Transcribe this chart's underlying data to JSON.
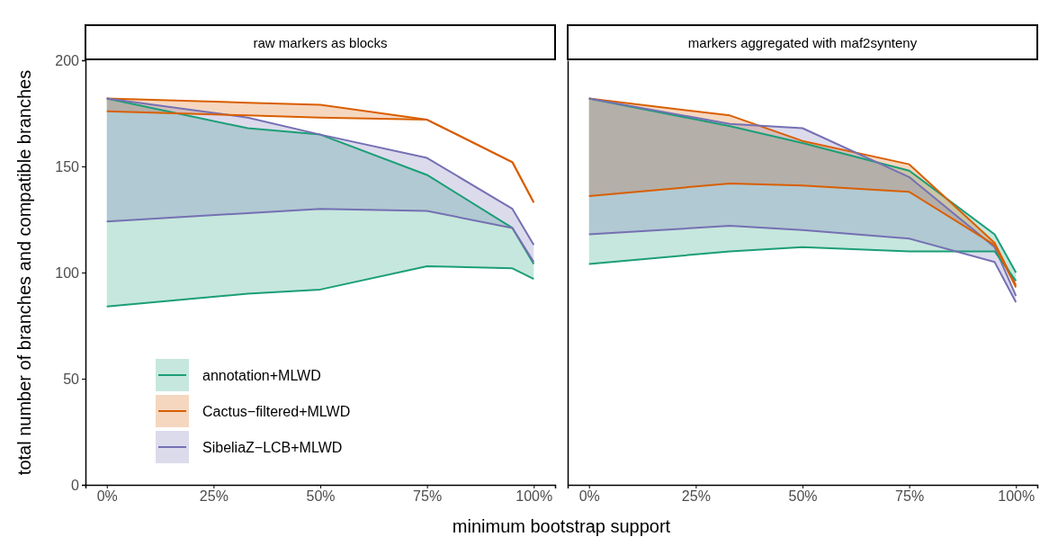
{
  "chart_data": [
    {
      "type": "line",
      "title": "raw markers as blocks",
      "xlabel": "minimum bootstrap support",
      "ylabel": "total number of branches and compatible branches",
      "x": [
        0,
        33,
        50,
        75,
        95,
        100
      ],
      "xlim": [
        -5,
        105
      ],
      "xticks": [
        {
          "value": 0,
          "label": "0%"
        },
        {
          "value": 25,
          "label": "25%"
        },
        {
          "value": 50,
          "label": "50%"
        },
        {
          "value": 75,
          "label": "75%"
        },
        {
          "value": 100,
          "label": "100%"
        }
      ],
      "ylim": [
        0,
        200
      ],
      "yticks": [
        0,
        50,
        100,
        150,
        200
      ],
      "grid": false,
      "legend": "bottom left",
      "series": [
        {
          "name": "annotation+MLWD",
          "color": "#1b9e77",
          "values": [
            182,
            168,
            165,
            146,
            121,
            104
          ],
          "lower": [
            84,
            90,
            92,
            103,
            102,
            97
          ],
          "upper": [
            182,
            168,
            165,
            146,
            121,
            104
          ]
        },
        {
          "name": "Cactus−filtered+MLWD",
          "color": "#d95f02",
          "values": [
            182,
            180,
            179,
            172,
            152,
            133
          ],
          "lower": [
            176,
            174,
            173,
            172,
            152,
            133
          ],
          "upper": [
            182,
            180,
            179,
            172,
            152,
            133
          ]
        },
        {
          "name": "SibeliaZ−LCB+MLWD",
          "color": "#7570b3",
          "values": [
            182,
            173,
            165,
            154,
            130,
            113
          ],
          "lower": [
            124,
            128,
            130,
            129,
            121,
            105
          ],
          "upper": [
            182,
            173,
            165,
            154,
            130,
            113
          ]
        },
        {
          "color": "#1b9e77",
          "values": [
            84,
            90,
            92,
            103,
            102,
            97
          ]
        },
        {
          "color": "#d95f02",
          "values": [
            176,
            174,
            173,
            172,
            152,
            133
          ]
        },
        {
          "color": "#7570b3",
          "values": [
            124,
            128,
            130,
            129,
            121,
            105
          ]
        }
      ]
    },
    {
      "type": "line",
      "title": "markers aggregated with maf2synteny",
      "x": [
        0,
        33,
        50,
        75,
        95,
        100
      ],
      "xlim": [
        -5,
        105
      ],
      "xticks": [
        {
          "value": 0,
          "label": "0%"
        },
        {
          "value": 25,
          "label": "25%"
        },
        {
          "value": 50,
          "label": "50%"
        },
        {
          "value": 75,
          "label": "75%"
        },
        {
          "value": 100,
          "label": "100%"
        }
      ],
      "ylim": [
        0,
        200
      ],
      "yticks": [
        0,
        50,
        100,
        150,
        200
      ],
      "tick_labels": "x",
      "grid": false,
      "series": [
        {
          "color": "#1b9e77",
          "values": [
            182,
            169,
            161,
            148,
            118,
            100
          ],
          "lower": [
            104,
            110,
            112,
            110,
            110,
            96
          ],
          "upper": [
            182,
            169,
            161,
            148,
            118,
            100
          ]
        },
        {
          "color": "#d95f02",
          "values": [
            182,
            174,
            162,
            151,
            114,
            94
          ],
          "lower": [
            136,
            142,
            141,
            138,
            113,
            93
          ],
          "upper": [
            182,
            174,
            162,
            151,
            114,
            94
          ]
        },
        {
          "color": "#7570b3",
          "values": [
            182,
            170,
            168,
            145,
            112,
            89
          ],
          "lower": [
            118,
            122,
            120,
            116,
            105,
            86
          ],
          "upper": [
            182,
            170,
            168,
            145,
            112,
            89
          ]
        },
        {
          "color": "#1b9e77",
          "values": [
            104,
            110,
            112,
            110,
            110,
            96
          ]
        },
        {
          "color": "#d95f02",
          "values": [
            136,
            142,
            141,
            138,
            113,
            93
          ]
        },
        {
          "color": "#7570b3",
          "values": [
            118,
            122,
            120,
            116,
            105,
            86
          ]
        }
      ]
    }
  ]
}
